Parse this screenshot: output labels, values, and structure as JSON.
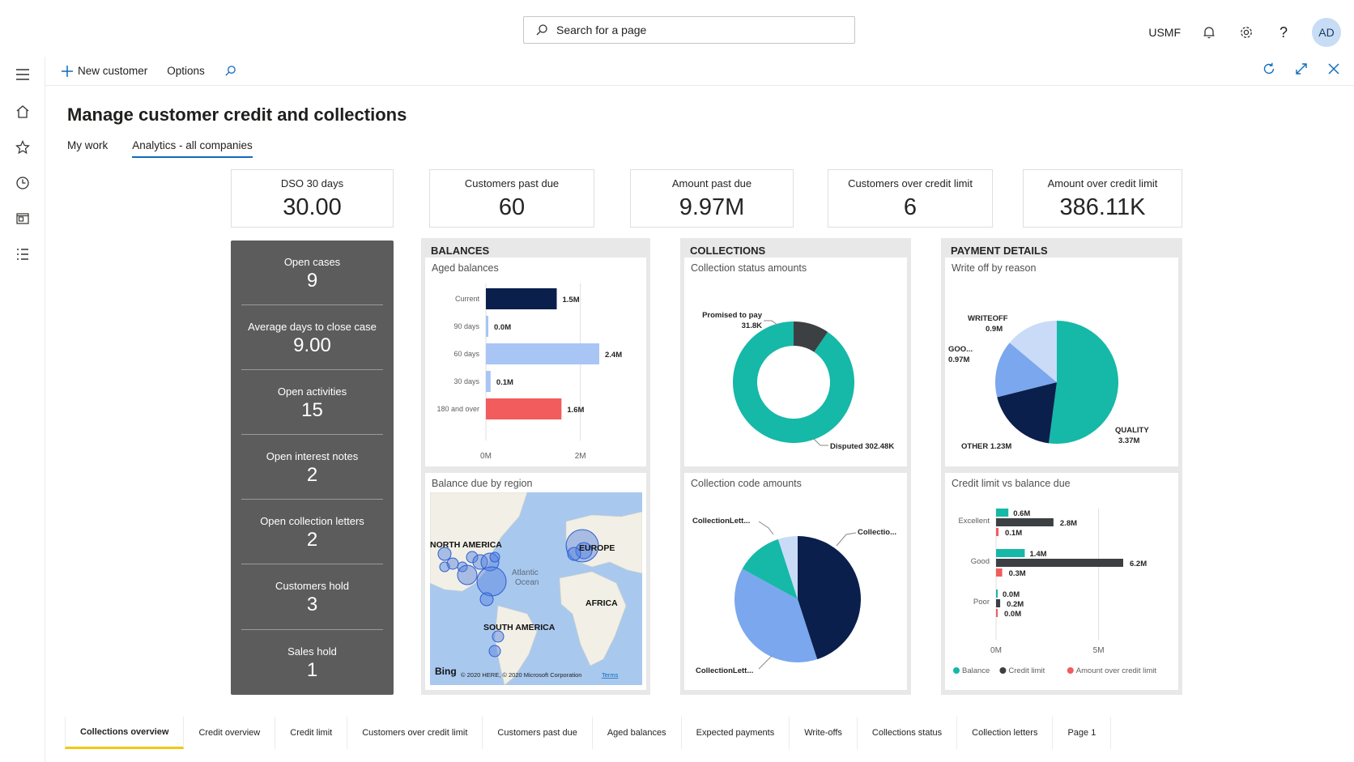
{
  "header": {
    "search_placeholder": "Search for a page",
    "company": "USMF",
    "avatar_initials": "AD"
  },
  "actions": {
    "new_customer": "New customer",
    "options": "Options"
  },
  "page": {
    "title": "Manage customer credit and collections",
    "tabs": [
      {
        "label": "My work"
      },
      {
        "label": "Analytics - all companies"
      }
    ]
  },
  "kpis": [
    {
      "label": "DSO 30 days",
      "value": "30.00"
    },
    {
      "label": "Customers past due",
      "value": "60"
    },
    {
      "label": "Amount past due",
      "value": "9.97M"
    },
    {
      "label": "Customers over credit limit",
      "value": "6"
    },
    {
      "label": "Amount over credit limit",
      "value": "386.11K"
    }
  ],
  "stats": [
    {
      "label": "Open cases",
      "value": "9"
    },
    {
      "label": "Average days to close case",
      "value": "9.00"
    },
    {
      "label": "Open activities",
      "value": "15"
    },
    {
      "label": "Open interest notes",
      "value": "2"
    },
    {
      "label": "Open collection letters",
      "value": "2"
    },
    {
      "label": "Customers hold",
      "value": "3"
    },
    {
      "label": "Sales hold",
      "value": "1"
    }
  ],
  "panels": {
    "balances": "BALANCES",
    "collections": "COLLECTIONS",
    "payment_details": "PAYMENT DETAILS"
  },
  "chart_data": [
    {
      "type": "bar",
      "title": "Aged balances",
      "orientation": "horizontal",
      "categories": [
        "Current",
        "90 days",
        "60 days",
        "30 days",
        "180 and over"
      ],
      "values": [
        1.5,
        0.0,
        2.4,
        0.1,
        1.6
      ],
      "data_labels": [
        "1.5M",
        "0.0M",
        "2.4M",
        "0.1M",
        "1.6M"
      ],
      "colors": [
        "#0b1f4d",
        "#a8c5f5",
        "#a8c5f5",
        "#a8c5f5",
        "#f25c5c"
      ],
      "xlim": [
        0,
        2.4
      ],
      "x_ticks": [
        "0M",
        "2M"
      ]
    },
    {
      "type": "pie",
      "variant": "donut",
      "title": "Collection status amounts",
      "slices": [
        {
          "label": "Promised to pay",
          "value": 31.8,
          "value_label": "31.8K",
          "color": "#3c4043"
        },
        {
          "label": "Disputed",
          "value": 302.48,
          "value_label": "302.48K",
          "color": "#16b8a8"
        }
      ]
    },
    {
      "type": "pie",
      "title": "Write off by reason",
      "slices": [
        {
          "label": "QUALITY",
          "value": 3.37,
          "value_label": "3.37M",
          "color": "#16b8a8"
        },
        {
          "label": "OTHER",
          "value": 1.23,
          "value_label": "1.23M",
          "color": "#0b1f4d"
        },
        {
          "label": "GOO...",
          "value": 0.97,
          "value_label": "0.97M",
          "color": "#7aa7ee"
        },
        {
          "label": "WRITEOFF",
          "value": 0.9,
          "value_label": "0.9M",
          "color": "#c9dbf7"
        }
      ]
    },
    {
      "type": "map",
      "title": "Balance due by region",
      "labels": [
        "NORTH AMERICA",
        "EUROPE",
        "AFRICA",
        "SOUTH AMERICA",
        "Atlantic",
        "Ocean"
      ],
      "attribution": "© 2020 HERE, © 2020 Microsoft Corporation",
      "terms": "Terms",
      "brand": "Bing"
    },
    {
      "type": "pie",
      "title": "Collection code amounts",
      "slices": [
        {
          "label": "Collectio...",
          "value": 45,
          "color": "#0b1f4d"
        },
        {
          "label": "CollectionLett...",
          "value": 38,
          "color": "#7aa7ee"
        },
        {
          "label": "CollectionLett...",
          "value": 12,
          "color": "#16b8a8"
        },
        {
          "label": "",
          "value": 5,
          "color": "#c9dbf7"
        }
      ]
    },
    {
      "type": "bar",
      "orientation": "horizontal",
      "title": "Credit limit vs balance due",
      "categories": [
        "Excellent",
        "Good",
        "Poor"
      ],
      "series": [
        {
          "name": "Balance",
          "color": "#16b8a8",
          "values": [
            0.6,
            1.4,
            0.0
          ],
          "labels": [
            "0.6M",
            "1.4M",
            "0.0M"
          ]
        },
        {
          "name": "Credit limit",
          "color": "#3c4043",
          "values": [
            2.8,
            6.2,
            0.2
          ],
          "labels": [
            "2.8M",
            "6.2M",
            "0.2M"
          ]
        },
        {
          "name": "Amount over credit limit",
          "color": "#f25c5c",
          "values": [
            0.1,
            0.3,
            0.0
          ],
          "labels": [
            "0.1M",
            "0.3M",
            "0.0M"
          ]
        }
      ],
      "xlim": [
        0,
        6.2
      ],
      "x_ticks": [
        "0M",
        "5M"
      ],
      "legend": "bottom"
    }
  ],
  "bottom_tabs": [
    "Collections overview",
    "Credit overview",
    "Credit limit",
    "Customers over credit limit",
    "Customers past due",
    "Aged balances",
    "Expected payments",
    "Write-offs",
    "Collections status",
    "Collection letters",
    "Page 1"
  ]
}
